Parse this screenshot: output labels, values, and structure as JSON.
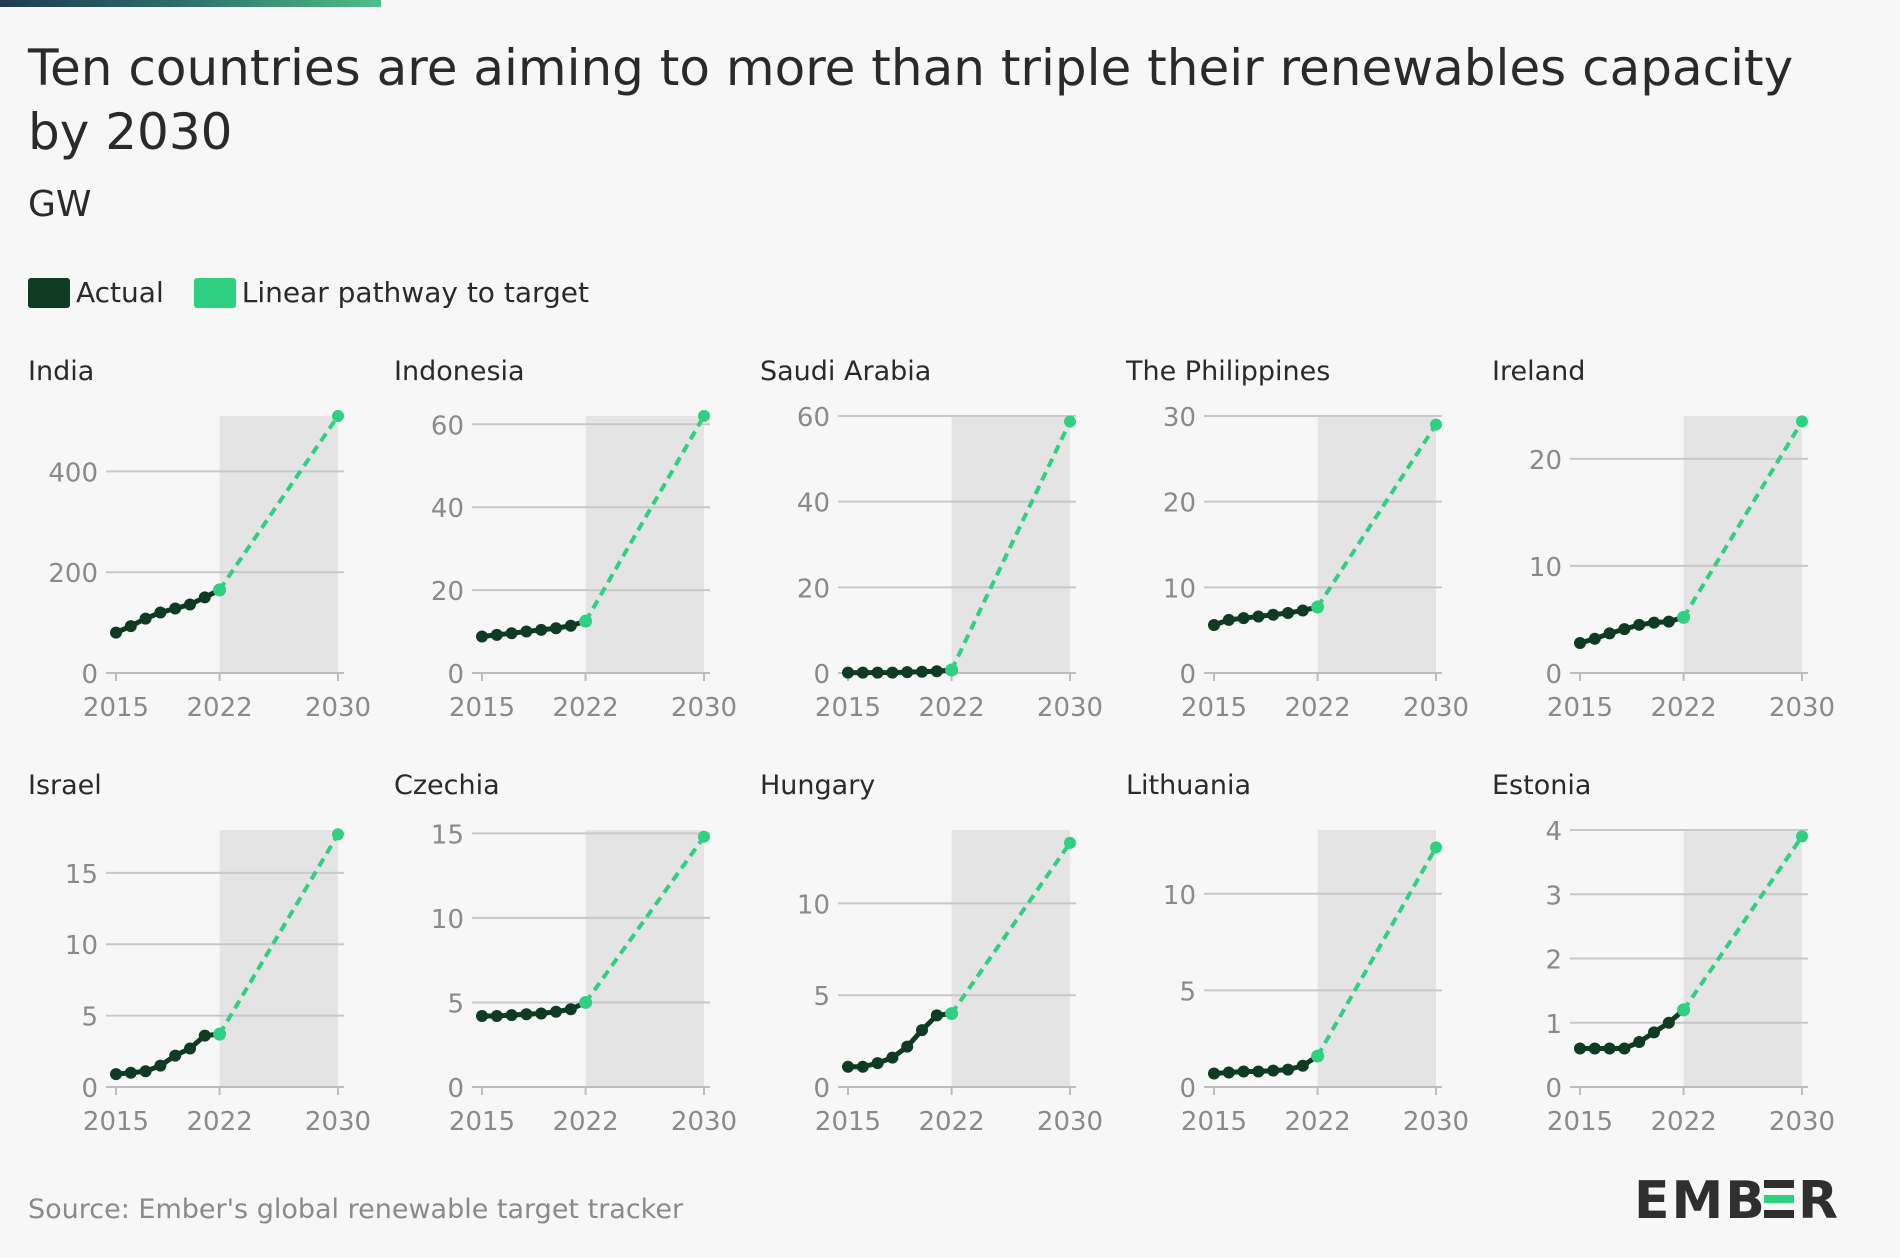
{
  "header": {
    "title": "Ten countries are aiming to more than triple their renewables capacity by 2030",
    "subtitle": "GW"
  },
  "legend": {
    "actual": "Actual",
    "pathway": "Linear pathway to target"
  },
  "colors": {
    "actual": "#0f3b22",
    "pathway": "#2fd07f",
    "shade": "#e4e4e4",
    "grid": "#c8c8c8",
    "tick_text": "#8a8a8a"
  },
  "footer": {
    "source": "Source: Ember's global renewable target tracker",
    "logo_text": "EMBER"
  },
  "chart_data": [
    {
      "type": "line",
      "title": "India",
      "xticks": [
        "2015",
        "2022",
        "2030"
      ],
      "yticks": [
        0,
        200,
        400
      ],
      "ylim": [
        0,
        510
      ],
      "series": [
        {
          "x": [
            2015,
            2016,
            2017,
            2018,
            2019,
            2020,
            2021,
            2022
          ],
          "values": [
            80,
            93,
            108,
            120,
            128,
            136,
            150,
            165
          ]
        },
        {
          "x": [
            2022,
            2030
          ],
          "values": [
            165,
            510
          ]
        }
      ]
    },
    {
      "type": "line",
      "title": "Indonesia",
      "xticks": [
        "2015",
        "2022",
        "2030"
      ],
      "yticks": [
        0,
        20,
        40,
        60
      ],
      "ylim": [
        0,
        62
      ],
      "series": [
        {
          "x": [
            2015,
            2016,
            2017,
            2018,
            2019,
            2020,
            2021,
            2022
          ],
          "values": [
            8.8,
            9.2,
            9.6,
            10.0,
            10.4,
            10.8,
            11.4,
            12.5
          ]
        },
        {
          "x": [
            2022,
            2030
          ],
          "values": [
            12.5,
            62
          ]
        }
      ]
    },
    {
      "type": "line",
      "title": "Saudi Arabia",
      "xticks": [
        "2015",
        "2022",
        "2030"
      ],
      "yticks": [
        0,
        20,
        40,
        60
      ],
      "ylim": [
        0,
        60
      ],
      "series": [
        {
          "x": [
            2015,
            2016,
            2017,
            2018,
            2019,
            2020,
            2021,
            2022
          ],
          "values": [
            0.1,
            0.1,
            0.1,
            0.1,
            0.2,
            0.3,
            0.4,
            0.7
          ]
        },
        {
          "x": [
            2022,
            2030
          ],
          "values": [
            0.7,
            58.7
          ]
        }
      ]
    },
    {
      "type": "line",
      "title": "The Philippines",
      "xticks": [
        "2015",
        "2022",
        "2030"
      ],
      "yticks": [
        0,
        10,
        20,
        30
      ],
      "ylim": [
        0,
        30
      ],
      "series": [
        {
          "x": [
            2015,
            2016,
            2017,
            2018,
            2019,
            2020,
            2021,
            2022
          ],
          "values": [
            5.6,
            6.2,
            6.4,
            6.6,
            6.8,
            7.0,
            7.3,
            7.7
          ]
        },
        {
          "x": [
            2022,
            2030
          ],
          "values": [
            7.7,
            29
          ]
        }
      ]
    },
    {
      "type": "line",
      "title": "Ireland",
      "xticks": [
        "2015",
        "2022",
        "2030"
      ],
      "yticks": [
        0,
        10,
        20
      ],
      "ylim": [
        0,
        24
      ],
      "series": [
        {
          "x": [
            2015,
            2016,
            2017,
            2018,
            2019,
            2020,
            2021,
            2022
          ],
          "values": [
            2.8,
            3.2,
            3.7,
            4.1,
            4.5,
            4.7,
            4.8,
            5.2
          ]
        },
        {
          "x": [
            2022,
            2030
          ],
          "values": [
            5.2,
            23.5
          ]
        }
      ]
    },
    {
      "type": "line",
      "title": "Israel",
      "xticks": [
        "2015",
        "2022",
        "2030"
      ],
      "yticks": [
        0,
        5,
        10,
        15
      ],
      "ylim": [
        0,
        18
      ],
      "series": [
        {
          "x": [
            2015,
            2016,
            2017,
            2018,
            2019,
            2020,
            2021,
            2022
          ],
          "values": [
            0.9,
            1.0,
            1.1,
            1.5,
            2.2,
            2.7,
            3.6,
            3.7
          ]
        },
        {
          "x": [
            2022,
            2030
          ],
          "values": [
            3.7,
            17.7
          ]
        }
      ]
    },
    {
      "type": "line",
      "title": "Czechia",
      "xticks": [
        "2015",
        "2022",
        "2030"
      ],
      "yticks": [
        0,
        5,
        10,
        15
      ],
      "ylim": [
        0,
        15.2
      ],
      "series": [
        {
          "x": [
            2015,
            2016,
            2017,
            2018,
            2019,
            2020,
            2021,
            2022
          ],
          "values": [
            4.2,
            4.2,
            4.25,
            4.3,
            4.35,
            4.45,
            4.6,
            5.0
          ]
        },
        {
          "x": [
            2022,
            2030
          ],
          "values": [
            5.0,
            14.8
          ]
        }
      ]
    },
    {
      "type": "line",
      "title": "Hungary",
      "xticks": [
        "2015",
        "2022",
        "2030"
      ],
      "yticks": [
        0,
        5,
        10
      ],
      "ylim": [
        0,
        14
      ],
      "series": [
        {
          "x": [
            2015,
            2016,
            2017,
            2018,
            2019,
            2020,
            2021,
            2022
          ],
          "values": [
            1.1,
            1.1,
            1.3,
            1.6,
            2.2,
            3.1,
            3.9,
            4.0
          ]
        },
        {
          "x": [
            2022,
            2030
          ],
          "values": [
            4.0,
            13.3
          ]
        }
      ]
    },
    {
      "type": "line",
      "title": "Lithuania",
      "xticks": [
        "2015",
        "2022",
        "2030"
      ],
      "yticks": [
        0,
        5,
        10
      ],
      "ylim": [
        0,
        13.3
      ],
      "series": [
        {
          "x": [
            2015,
            2016,
            2017,
            2018,
            2019,
            2020,
            2021,
            2022
          ],
          "values": [
            0.7,
            0.75,
            0.8,
            0.8,
            0.85,
            0.9,
            1.1,
            1.6
          ]
        },
        {
          "x": [
            2022,
            2030
          ],
          "values": [
            1.6,
            12.4
          ]
        }
      ]
    },
    {
      "type": "line",
      "title": "Estonia",
      "xticks": [
        "2015",
        "2022",
        "2030"
      ],
      "yticks": [
        0,
        1,
        2,
        3,
        4
      ],
      "ylim": [
        0,
        4
      ],
      "series": [
        {
          "x": [
            2015,
            2016,
            2017,
            2018,
            2019,
            2020,
            2021,
            2022
          ],
          "values": [
            0.6,
            0.6,
            0.6,
            0.6,
            0.7,
            0.85,
            1.0,
            1.2
          ]
        },
        {
          "x": [
            2022,
            2030
          ],
          "values": [
            1.2,
            3.9
          ]
        }
      ]
    }
  ]
}
